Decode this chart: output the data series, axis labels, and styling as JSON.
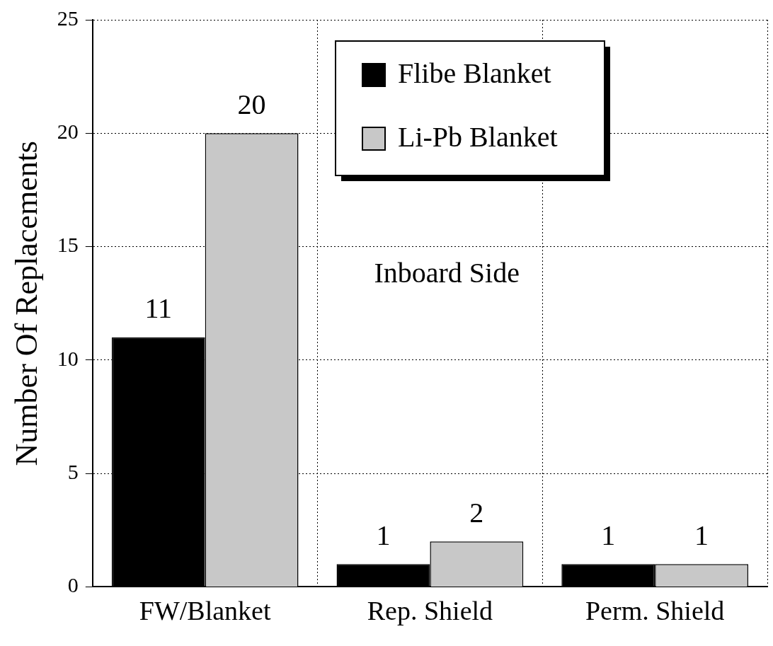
{
  "chart_data": {
    "type": "bar",
    "ylabel": "Number Of Replacements",
    "categories": [
      "FW/Blanket",
      "Rep. Shield",
      "Perm. Shield"
    ],
    "series": [
      {
        "name": "Flibe Blanket",
        "color": "#000000",
        "values": [
          11,
          1,
          1
        ]
      },
      {
        "name": "Li-Pb Blanket",
        "color": "#c8c8c8",
        "values": [
          20,
          2,
          1
        ]
      }
    ],
    "ylim": [
      0,
      25
    ],
    "yticks": [
      0,
      5,
      10,
      15,
      20,
      25
    ],
    "grid": true,
    "legend": "top right",
    "data_labels": true,
    "annotations": [
      "Inboard Side"
    ]
  }
}
